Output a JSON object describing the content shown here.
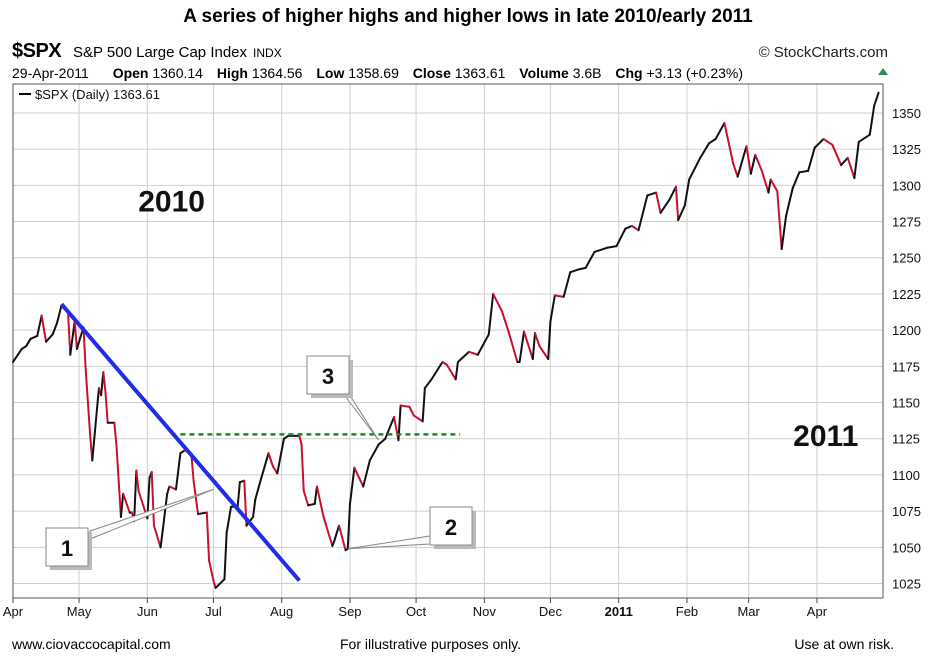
{
  "title": "A series of higher highs and higher lows in late 2010/early 2011",
  "header": {
    "symbol": "$SPX",
    "name": "S&P 500 Large Cap Index",
    "exchange": "INDX",
    "brand": "© StockCharts.com",
    "date": "29-Apr-2011",
    "open_label": "Open",
    "open": "1360.14",
    "high_label": "High",
    "high": "1364.56",
    "low_label": "Low",
    "low": "1358.69",
    "close_label": "Close",
    "close": "1363.61",
    "volume_label": "Volume",
    "volume": "3.6B",
    "chg_label": "Chg",
    "chg": "+3.13 (+0.23%)"
  },
  "colors": {
    "up": "#111111",
    "down": "#c8102e",
    "trendline": "#1f2ee6",
    "resistance": "#1a8c1a",
    "grid": "#cfcfcf"
  },
  "chart_data": {
    "type": "line",
    "title": "A series of higher highs and higher lows in late 2010/early 2011",
    "legend": "$SPX (Daily) 1363.61",
    "legend_position": "top-left",
    "x_tick_labels": [
      "Apr",
      "May",
      "Jun",
      "Jul",
      "Aug",
      "Sep",
      "Oct",
      "Nov",
      "Dec",
      "2011",
      "Feb",
      "Mar",
      "Apr"
    ],
    "x_tick_bold": [
      false,
      false,
      false,
      false,
      false,
      false,
      false,
      false,
      false,
      true,
      false,
      false,
      false
    ],
    "y_ticks": [
      1025,
      1050,
      1075,
      1100,
      1125,
      1150,
      1175,
      1200,
      1225,
      1250,
      1275,
      1300,
      1325,
      1350
    ],
    "ylim": [
      1015,
      1370
    ],
    "grid": true,
    "series": [
      {
        "values": [
          [
            "2010-04-01",
            1178
          ],
          [
            "2010-04-05",
            1187
          ],
          [
            "2010-04-07",
            1189
          ],
          [
            "2010-04-09",
            1194
          ],
          [
            "2010-04-12",
            1196
          ],
          [
            "2010-04-14",
            1210
          ],
          [
            "2010-04-16",
            1192
          ],
          [
            "2010-04-19",
            1197
          ],
          [
            "2010-04-21",
            1205
          ],
          [
            "2010-04-23",
            1217
          ],
          [
            "2010-04-26",
            1212
          ],
          [
            "2010-04-27",
            1183
          ],
          [
            "2010-04-29",
            1206
          ],
          [
            "2010-04-30",
            1187
          ],
          [
            "2010-05-03",
            1202
          ],
          [
            "2010-05-04",
            1173
          ],
          [
            "2010-05-06",
            1128
          ],
          [
            "2010-05-07",
            1110
          ],
          [
            "2010-05-10",
            1160
          ],
          [
            "2010-05-11",
            1155
          ],
          [
            "2010-05-12",
            1171
          ],
          [
            "2010-05-13",
            1157
          ],
          [
            "2010-05-14",
            1136
          ],
          [
            "2010-05-17",
            1136
          ],
          [
            "2010-05-18",
            1120
          ],
          [
            "2010-05-20",
            1071
          ],
          [
            "2010-05-21",
            1087
          ],
          [
            "2010-05-24",
            1074
          ],
          [
            "2010-05-25",
            1074
          ],
          [
            "2010-05-26",
            1068
          ],
          [
            "2010-05-27",
            1103
          ],
          [
            "2010-05-28",
            1089
          ],
          [
            "2010-06-01",
            1070
          ],
          [
            "2010-06-02",
            1098
          ],
          [
            "2010-06-03",
            1102
          ],
          [
            "2010-06-04",
            1065
          ],
          [
            "2010-06-07",
            1050
          ],
          [
            "2010-06-08",
            1062
          ],
          [
            "2010-06-10",
            1087
          ],
          [
            "2010-06-11",
            1092
          ],
          [
            "2010-06-14",
            1090
          ],
          [
            "2010-06-16",
            1115
          ],
          [
            "2010-06-18",
            1117
          ],
          [
            "2010-06-21",
            1114
          ],
          [
            "2010-06-22",
            1096
          ],
          [
            "2010-06-24",
            1073
          ],
          [
            "2010-06-28",
            1074
          ],
          [
            "2010-06-29",
            1041
          ],
          [
            "2010-07-01",
            1027
          ],
          [
            "2010-07-02",
            1022
          ],
          [
            "2010-07-06",
            1028
          ],
          [
            "2010-07-07",
            1060
          ],
          [
            "2010-07-09",
            1078
          ],
          [
            "2010-07-12",
            1078
          ],
          [
            "2010-07-13",
            1095
          ],
          [
            "2010-07-15",
            1096
          ],
          [
            "2010-07-16",
            1065
          ],
          [
            "2010-07-19",
            1071
          ],
          [
            "2010-07-20",
            1083
          ],
          [
            "2010-07-22",
            1094
          ],
          [
            "2010-07-26",
            1115
          ],
          [
            "2010-07-28",
            1106
          ],
          [
            "2010-07-30",
            1101
          ],
          [
            "2010-08-02",
            1125
          ],
          [
            "2010-08-04",
            1127
          ],
          [
            "2010-08-09",
            1127
          ],
          [
            "2010-08-10",
            1121
          ],
          [
            "2010-08-11",
            1089
          ],
          [
            "2010-08-13",
            1079
          ],
          [
            "2010-08-16",
            1080
          ],
          [
            "2010-08-17",
            1092
          ],
          [
            "2010-08-20",
            1071
          ],
          [
            "2010-08-24",
            1051
          ],
          [
            "2010-08-25",
            1055
          ],
          [
            "2010-08-27",
            1065
          ],
          [
            "2010-08-30",
            1048
          ],
          [
            "2010-08-31",
            1049
          ],
          [
            "2010-09-01",
            1080
          ],
          [
            "2010-09-03",
            1105
          ],
          [
            "2010-09-07",
            1092
          ],
          [
            "2010-09-10",
            1110
          ],
          [
            "2010-09-14",
            1121
          ],
          [
            "2010-09-17",
            1125
          ],
          [
            "2010-09-21",
            1140
          ],
          [
            "2010-09-23",
            1124
          ],
          [
            "2010-09-24",
            1148
          ],
          [
            "2010-09-28",
            1147
          ],
          [
            "2010-09-30",
            1141
          ],
          [
            "2010-10-04",
            1137
          ],
          [
            "2010-10-05",
            1160
          ],
          [
            "2010-10-08",
            1166
          ],
          [
            "2010-10-13",
            1178
          ],
          [
            "2010-10-15",
            1176
          ],
          [
            "2010-10-19",
            1166
          ],
          [
            "2010-10-20",
            1178
          ],
          [
            "2010-10-25",
            1185
          ],
          [
            "2010-10-29",
            1183
          ],
          [
            "2010-11-03",
            1197
          ],
          [
            "2010-11-05",
            1225
          ],
          [
            "2010-11-09",
            1213
          ],
          [
            "2010-11-12",
            1199
          ],
          [
            "2010-11-16",
            1178
          ],
          [
            "2010-11-17",
            1178
          ],
          [
            "2010-11-19",
            1199
          ],
          [
            "2010-11-23",
            1180
          ],
          [
            "2010-11-24",
            1198
          ],
          [
            "2010-11-26",
            1189
          ],
          [
            "2010-11-30",
            1180
          ],
          [
            "2010-12-01",
            1206
          ],
          [
            "2010-12-03",
            1224
          ],
          [
            "2010-12-07",
            1223
          ],
          [
            "2010-12-10",
            1240
          ],
          [
            "2010-12-14",
            1242
          ],
          [
            "2010-12-17",
            1243
          ],
          [
            "2010-12-21",
            1254
          ],
          [
            "2010-12-27",
            1257
          ],
          [
            "2010-12-31",
            1258
          ],
          [
            "2011-01-04",
            1270
          ],
          [
            "2011-01-07",
            1272
          ],
          [
            "2011-01-10",
            1269
          ],
          [
            "2011-01-14",
            1293
          ],
          [
            "2011-01-18",
            1295
          ],
          [
            "2011-01-20",
            1281
          ],
          [
            "2011-01-24",
            1290
          ],
          [
            "2011-01-27",
            1299
          ],
          [
            "2011-01-28",
            1276
          ],
          [
            "2011-01-31",
            1286
          ],
          [
            "2011-02-02",
            1304
          ],
          [
            "2011-02-07",
            1319
          ],
          [
            "2011-02-11",
            1329
          ],
          [
            "2011-02-14",
            1332
          ],
          [
            "2011-02-18",
            1343
          ],
          [
            "2011-02-22",
            1315
          ],
          [
            "2011-02-24",
            1306
          ],
          [
            "2011-02-28",
            1327
          ],
          [
            "2011-03-02",
            1308
          ],
          [
            "2011-03-04",
            1321
          ],
          [
            "2011-03-07",
            1310
          ],
          [
            "2011-03-10",
            1295
          ],
          [
            "2011-03-11",
            1304
          ],
          [
            "2011-03-14",
            1296
          ],
          [
            "2011-03-16",
            1256
          ],
          [
            "2011-03-18",
            1279
          ],
          [
            "2011-03-21",
            1298
          ],
          [
            "2011-03-24",
            1309
          ],
          [
            "2011-03-28",
            1310
          ],
          [
            "2011-03-31",
            1326
          ],
          [
            "2011-04-04",
            1332
          ],
          [
            "2011-04-08",
            1328
          ],
          [
            "2011-04-12",
            1314
          ],
          [
            "2011-04-15",
            1319
          ],
          [
            "2011-04-18",
            1305
          ],
          [
            "2011-04-20",
            1330
          ],
          [
            "2011-04-25",
            1335
          ],
          [
            "2011-04-27",
            1355
          ],
          [
            "2011-04-29",
            1364
          ]
        ]
      }
    ],
    "trendline": {
      "from": [
        "2010-04-23",
        1218
      ],
      "to": [
        "2010-08-09",
        1027
      ]
    },
    "resistance_line": {
      "from": [
        "2010-06-16",
        1128
      ],
      "to": [
        "2010-10-21",
        1128
      ]
    },
    "annotations": [
      {
        "text": "2010",
        "at": [
          "2010-06-12",
          1282
        ]
      },
      {
        "text": "2011",
        "at": [
          "2011-04-05",
          1120
        ]
      },
      {
        "text": "1",
        "pointer_to": [
          [
            "2010-06-01",
            1072
          ],
          [
            "2010-07-01",
            1090
          ]
        ]
      },
      {
        "text": "2",
        "pointer_to": [
          [
            "2010-08-31",
            1049
          ]
        ]
      },
      {
        "text": "3",
        "pointer_to": [
          [
            "2010-09-14",
            1124
          ]
        ]
      }
    ]
  },
  "footer": {
    "left": "www.ciovaccocapital.com",
    "center": "For illustrative purposes only.",
    "right": "Use at own risk."
  }
}
